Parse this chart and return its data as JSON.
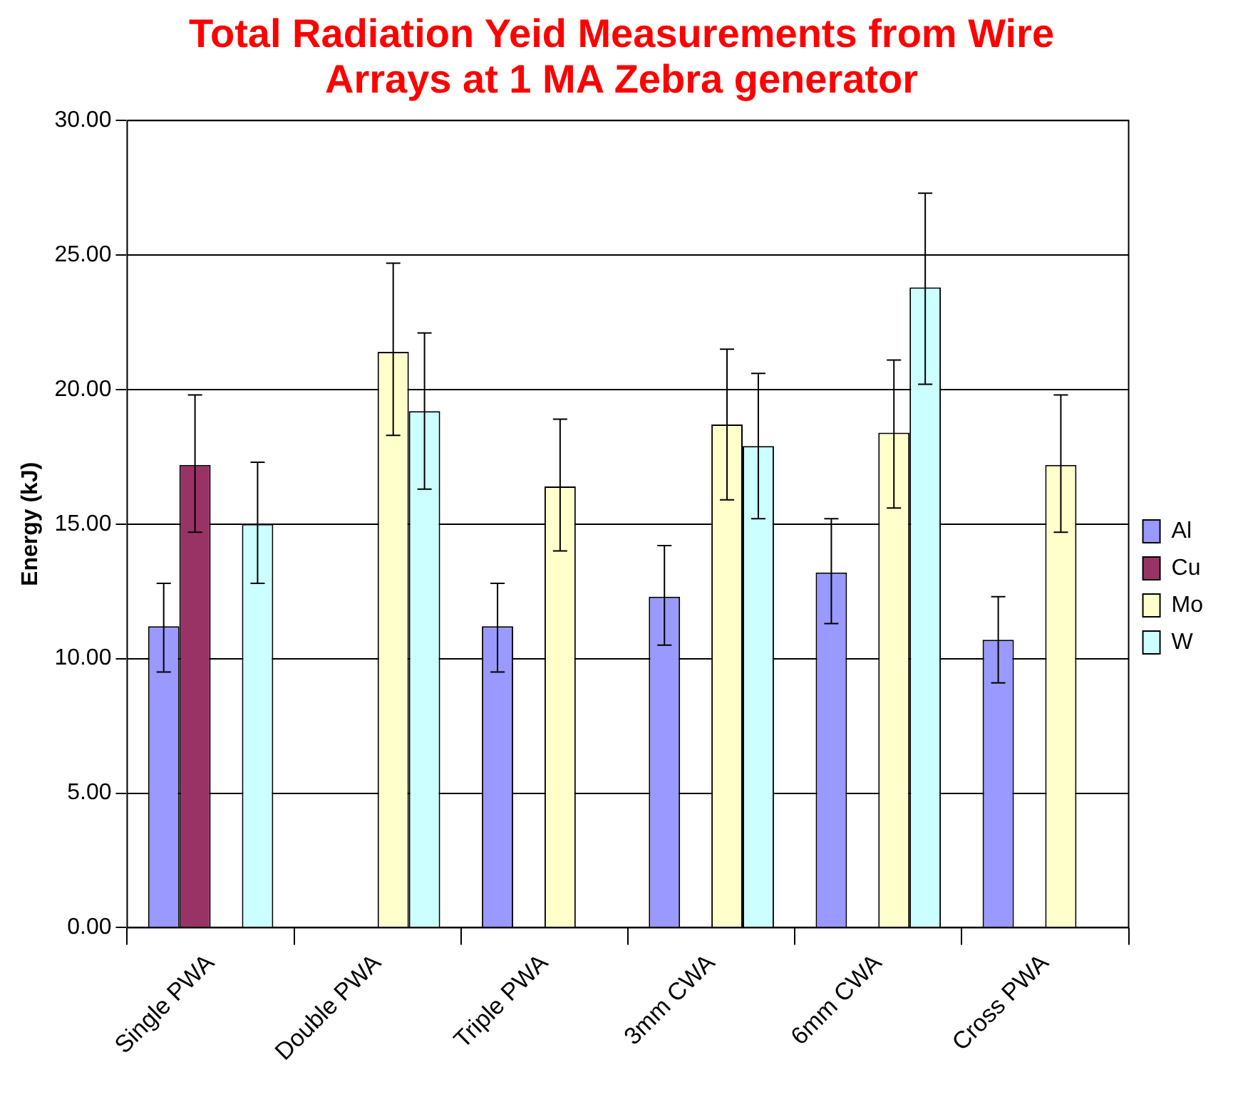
{
  "chart_data": {
    "type": "bar",
    "title": "Total Radiation Yeid Measurements from Wire Arrays at 1 MA Zebra generator",
    "ylabel": "Energy (kJ)",
    "categories": [
      "Single PWA",
      "Double PWA",
      "Triple PWA",
      "3mm CWA",
      "6mm CWA",
      "Cross PWA"
    ],
    "series": [
      {
        "name": "Al",
        "color": "#9999ff",
        "values": [
          11.2,
          null,
          11.2,
          12.3,
          13.2,
          10.7
        ],
        "errors": [
          [
            9.5,
            12.8
          ],
          null,
          [
            9.5,
            12.8
          ],
          [
            10.5,
            14.2
          ],
          [
            11.3,
            15.2
          ],
          [
            9.1,
            12.3
          ]
        ]
      },
      {
        "name": "Cu",
        "color": "#993366",
        "values": [
          17.2,
          null,
          null,
          null,
          null,
          null
        ],
        "errors": [
          [
            14.7,
            19.8
          ],
          null,
          null,
          null,
          null,
          null
        ]
      },
      {
        "name": "Mo",
        "color": "#ffffcc",
        "values": [
          null,
          21.4,
          16.4,
          18.7,
          18.4,
          17.2
        ],
        "errors": [
          null,
          [
            18.3,
            24.7
          ],
          [
            14.0,
            18.9
          ],
          [
            15.9,
            21.5
          ],
          [
            15.6,
            21.1
          ],
          [
            14.7,
            19.8
          ]
        ]
      },
      {
        "name": "W",
        "color": "#ccffff",
        "values": [
          15.0,
          19.2,
          null,
          17.9,
          23.8,
          null
        ],
        "errors": [
          [
            12.8,
            17.3
          ],
          [
            16.3,
            22.1
          ],
          null,
          [
            15.2,
            20.6
          ],
          [
            20.2,
            27.3
          ],
          null
        ]
      }
    ],
    "ylim": [
      0,
      30
    ],
    "yticks": [
      {
        "value": 0,
        "label": "0.00"
      },
      {
        "value": 5,
        "label": "5.00"
      },
      {
        "value": 10,
        "label": "10.00"
      },
      {
        "value": 15,
        "label": "15.00"
      },
      {
        "value": 20,
        "label": "20.00"
      },
      {
        "value": 25,
        "label": "25.00"
      },
      {
        "value": 30,
        "label": "30.00"
      }
    ],
    "grid": "y",
    "legend": "right"
  }
}
